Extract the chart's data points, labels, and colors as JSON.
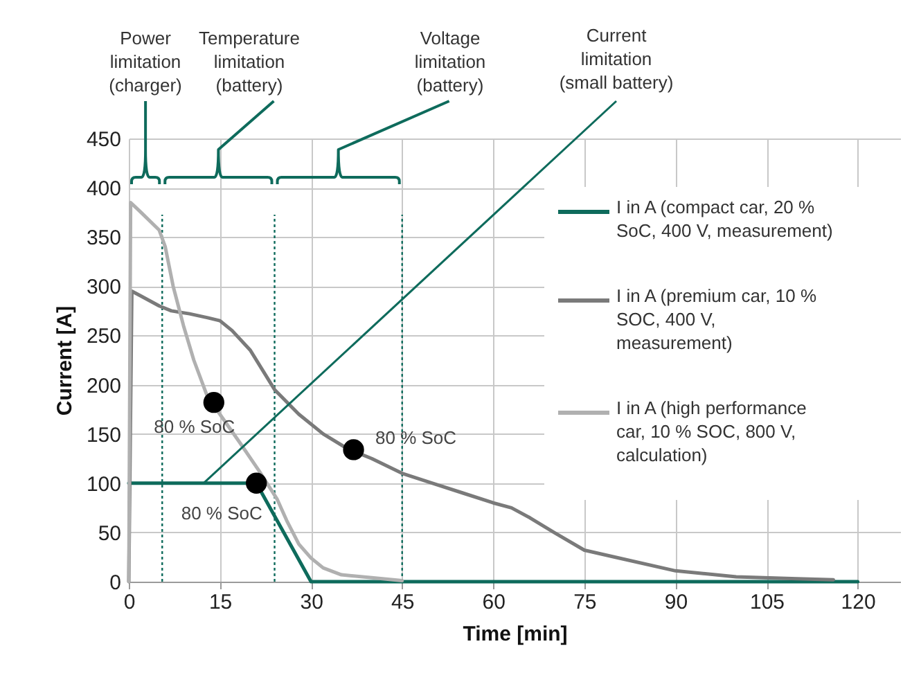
{
  "chart_data": {
    "type": "line",
    "xlabel": "Time [min]",
    "ylabel": "Current [A]",
    "xlim": [
      0,
      127
    ],
    "ylim": [
      0,
      450
    ],
    "xticks": [
      0,
      15,
      30,
      45,
      60,
      75,
      90,
      105,
      120
    ],
    "yticks": [
      0,
      50,
      100,
      150,
      200,
      250,
      300,
      350,
      400,
      450
    ],
    "grid": true,
    "legend": "right",
    "line_style": "solid",
    "series": [
      {
        "name": "I in A (compact car, 20 %\nSoC, 400 V, measurement)",
        "color": "#0e6b5c",
        "x": [
          0,
          21,
          30,
          120
        ],
        "values": [
          100,
          100,
          0,
          0
        ]
      },
      {
        "name": "I in A (premium car, 10 %\nSOC, 400 V,\nmeasurement)",
        "color": "#7a7a7a",
        "x": [
          0,
          0.5,
          2,
          5,
          7,
          10,
          13,
          15,
          17,
          20,
          24,
          28,
          32,
          36,
          40,
          45,
          50,
          55,
          60,
          63,
          66,
          70,
          75,
          80,
          90,
          100,
          110,
          116
        ],
        "values": [
          0,
          295,
          290,
          280,
          275,
          272,
          268,
          265,
          255,
          235,
          195,
          170,
          150,
          135,
          125,
          110,
          100,
          90,
          80,
          75,
          65,
          50,
          32,
          25,
          11,
          5,
          3,
          2
        ]
      },
      {
        "name": "I in A  (high performance\ncar, 10 % SOC, 800 V,\ncalculation)",
        "color": "#b0b0b0",
        "x": [
          0,
          0.3,
          2,
          5,
          6,
          7.3,
          9,
          10.7,
          13,
          15,
          18.3,
          21.4,
          24.4,
          26,
          28,
          30,
          32,
          35,
          40,
          45
        ],
        "values": [
          0,
          385,
          375,
          357,
          340,
          300,
          260,
          225,
          187,
          170,
          141,
          113,
          84,
          62,
          38,
          24,
          14,
          7,
          4,
          1
        ]
      },
      {
        "type": "scatter",
        "marker": "circle",
        "color": "#000000",
        "x": [
          14,
          21,
          37
        ],
        "values": [
          182,
          100,
          134
        ]
      }
    ],
    "ref_lines": [
      {
        "axis": "x",
        "value": 5.5,
        "color": "#0e6b5c",
        "line_style": "dotted"
      },
      {
        "axis": "x",
        "value": 24,
        "color": "#0e6b5c",
        "line_style": "dotted"
      },
      {
        "axis": "x",
        "value": 45,
        "color": "#0e6b5c",
        "line_style": "dotted"
      }
    ],
    "annotations": [
      "Power\nlimitation\n(charger)",
      "Temperature\nlimitation\n(battery)",
      "Voltage\nlimitation\n(battery)",
      {
        "text": "Current\nlimitation\n(small battery)",
        "x": 12.3,
        "y": 100
      },
      {
        "text": "80 % SoC",
        "x": 14,
        "y": 182
      },
      {
        "text": "80 % SoC",
        "x": 21,
        "y": 100
      },
      {
        "text": "80 % SoC",
        "x": 37,
        "y": 134
      }
    ]
  }
}
